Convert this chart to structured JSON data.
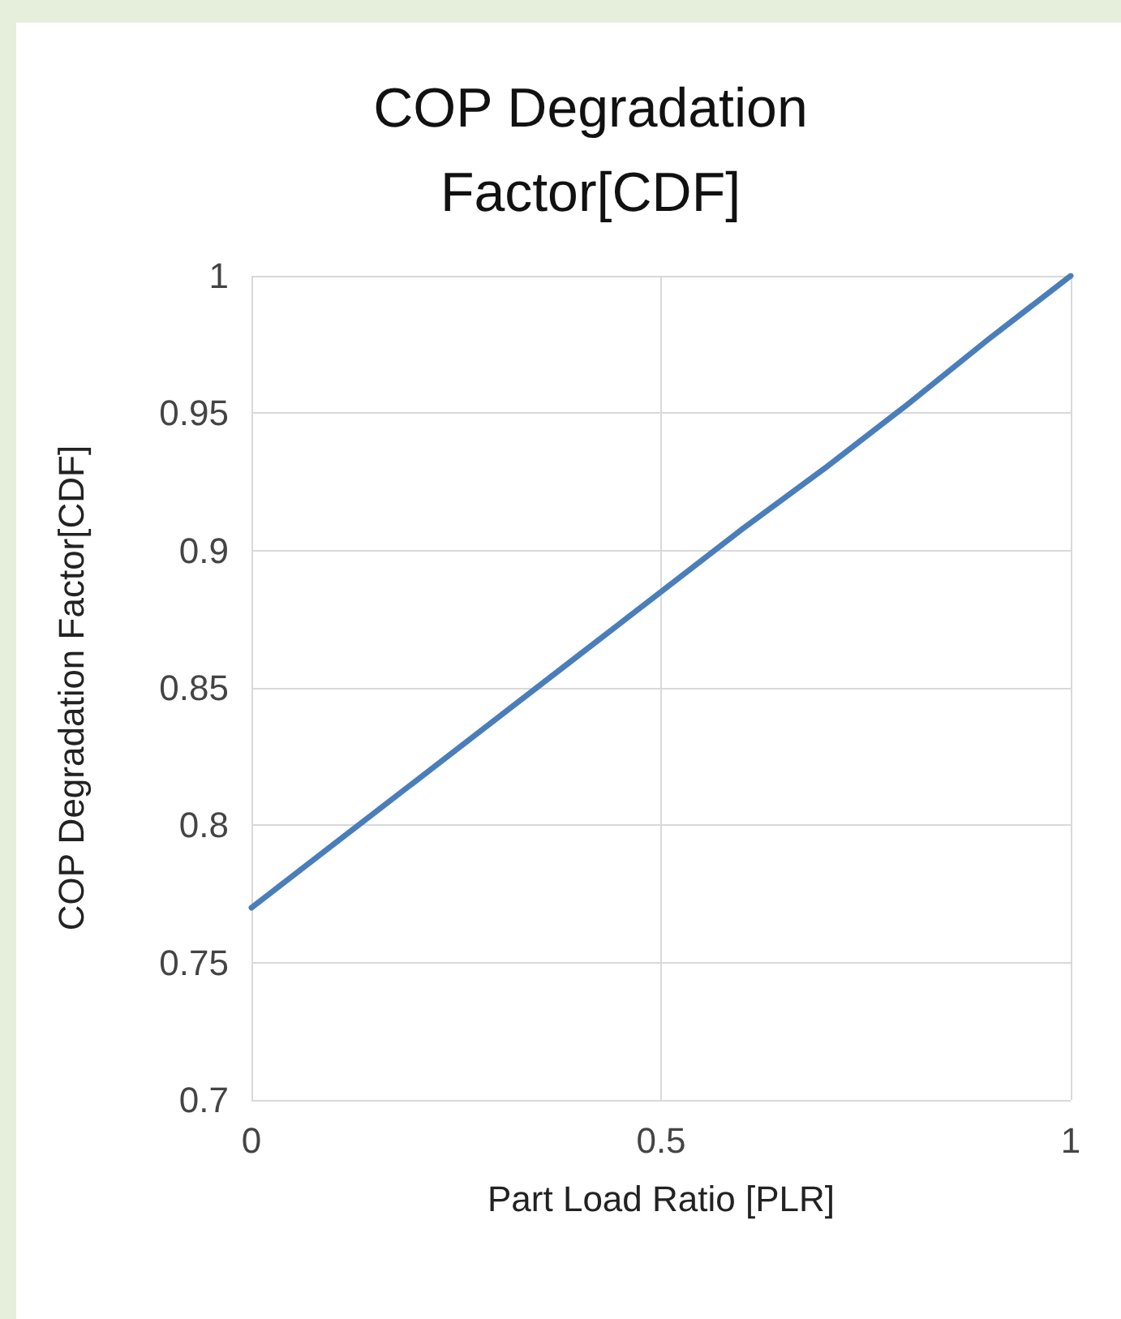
{
  "chart_data": {
    "type": "line",
    "title": "COP Degradation\nFactor[CDF]",
    "xlabel": "Part Load Ratio [PLR]",
    "ylabel": "COP Degradation Factor[CDF]",
    "x": [
      0,
      0.1,
      0.2,
      0.3,
      0.4,
      0.5,
      0.6,
      0.7,
      0.8,
      0.9,
      1
    ],
    "series": [
      {
        "color": "#4a7ebb",
        "values": [
          0.77,
          0.793,
          0.816,
          0.839,
          0.862,
          0.885,
          0.908,
          0.93,
          0.953,
          0.977,
          1
        ]
      }
    ],
    "xlim": [
      0,
      1
    ],
    "xticks": [
      0,
      0.5,
      1
    ],
    "ylim": [
      0.7,
      1
    ],
    "yticks": [
      0.7,
      0.75,
      0.8,
      0.85,
      0.9,
      0.95,
      1
    ],
    "grid": true,
    "marker": "none",
    "line_style": "solid"
  }
}
